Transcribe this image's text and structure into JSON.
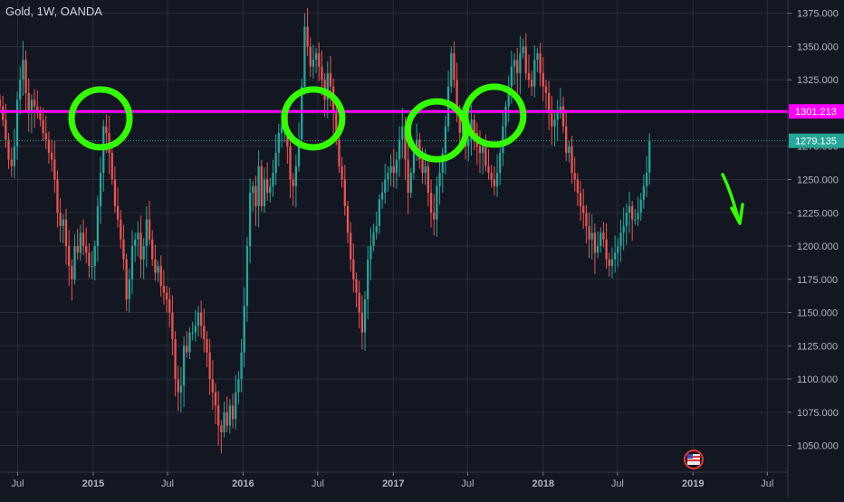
{
  "header": {
    "symbol_title": "Gold, 1W, OANDA"
  },
  "chart_data": {
    "type": "candlestick",
    "title": "Gold, 1W, OANDA",
    "ylim": [
      1030,
      1385
    ],
    "y_ticks": [
      1050,
      1075,
      1100,
      1125,
      1150,
      1175,
      1200,
      1225,
      1250,
      1275,
      1300,
      1325,
      1350,
      1375
    ],
    "y_tick_labels": [
      "1050.000",
      "1075.000",
      "1100.000",
      "1125.000",
      "1150.000",
      "1175.000",
      "1200.000",
      "1225.000",
      "1250.000",
      "1275.000",
      "1300.000",
      "1325.000",
      "1350.000",
      "1375.000"
    ],
    "x_range": [
      "2014-05-19",
      "2019-08-20"
    ],
    "x_ticks": [
      {
        "date": "2014-07-01",
        "label": "Jul",
        "bold": false
      },
      {
        "date": "2015-01-01",
        "label": "2015",
        "bold": true
      },
      {
        "date": "2015-07-01",
        "label": "Jul",
        "bold": false
      },
      {
        "date": "2016-01-01",
        "label": "2016",
        "bold": true
      },
      {
        "date": "2016-07-01",
        "label": "Jul",
        "bold": false
      },
      {
        "date": "2017-01-01",
        "label": "2017",
        "bold": true
      },
      {
        "date": "2017-07-01",
        "label": "Jul",
        "bold": false
      },
      {
        "date": "2018-01-01",
        "label": "2018",
        "bold": true
      },
      {
        "date": "2018-07-01",
        "label": "Jul",
        "bold": false
      },
      {
        "date": "2019-01-01",
        "label": "2019",
        "bold": true
      },
      {
        "date": "2019-07-01",
        "label": "Jul",
        "bold": false
      }
    ],
    "series": [
      {
        "name": "Gold",
        "start": "2014-05-19",
        "interval_days": 7,
        "close": [
          1305,
          1295,
          1280,
          1265,
          1260,
          1275,
          1310,
          1325,
          1340,
          1315,
          1300,
          1310,
          1305,
          1300,
          1295,
          1285,
          1280,
          1270,
          1265,
          1250,
          1225,
          1215,
          1220,
          1200,
          1185,
          1175,
          1200,
          1195,
          1210,
          1200,
          1195,
          1185,
          1185,
          1200,
          1230,
          1255,
          1290,
          1285,
          1270,
          1250,
          1230,
          1220,
          1205,
          1190,
          1160,
          1175,
          1200,
          1205,
          1210,
          1190,
          1200,
          1220,
          1205,
          1190,
          1180,
          1185,
          1170,
          1165,
          1160,
          1150,
          1130,
          1100,
          1090,
          1095,
          1125,
          1120,
          1135,
          1135,
          1140,
          1150,
          1140,
          1130,
          1120,
          1100,
          1090,
          1080,
          1065,
          1060,
          1075,
          1065,
          1080,
          1070,
          1090,
          1100,
          1120,
          1155,
          1200,
          1240,
          1245,
          1230,
          1260,
          1230,
          1250,
          1240,
          1245,
          1255,
          1270,
          1285,
          1290,
          1290,
          1275,
          1250,
          1245,
          1260,
          1280,
          1320,
          1365,
          1350,
          1335,
          1340,
          1345,
          1335,
          1325,
          1310,
          1330,
          1320,
          1300,
          1280,
          1260,
          1250,
          1230,
          1210,
          1190,
          1175,
          1165,
          1150,
          1135,
          1160,
          1190,
          1200,
          1210,
          1215,
          1235,
          1240,
          1250,
          1255,
          1260,
          1255,
          1265,
          1280,
          1290,
          1265,
          1240,
          1255,
          1270,
          1280,
          1265,
          1255,
          1260,
          1240,
          1225,
          1220,
          1245,
          1255,
          1270,
          1290,
          1320,
          1345,
          1325,
          1300,
          1285,
          1295,
          1275,
          1280,
          1295,
          1285,
          1275,
          1270,
          1275,
          1260,
          1255,
          1250,
          1245,
          1255,
          1270,
          1290,
          1305,
          1320,
          1335,
          1340,
          1330,
          1345,
          1350,
          1330,
          1325,
          1320,
          1340,
          1345,
          1330,
          1320,
          1315,
          1300,
          1290,
          1295,
          1300,
          1305,
          1290,
          1270,
          1275,
          1255,
          1250,
          1240,
          1230,
          1225,
          1215,
          1205,
          1210,
          1195,
          1200,
          1210,
          1205,
          1190,
          1185,
          1190,
          1195,
          1200,
          1210,
          1215,
          1225,
          1230,
          1220,
          1220,
          1225,
          1235,
          1245,
          1255,
          1279
        ]
      }
    ],
    "candle_colors": {
      "up": "#26a69a",
      "down": "#ef5350"
    },
    "annotations": {
      "resistance_line": {
        "value": 1301.213,
        "label": "1301.213",
        "color": "#ff00ff"
      },
      "last_price": {
        "value": 1279.135,
        "label": "1279.135",
        "color": "#26a69a"
      },
      "circles": [
        {
          "date": "2015-01-19",
          "value": 1296,
          "color": "#33ff00"
        },
        {
          "date": "2016-06-20",
          "value": 1296,
          "color": "#33ff00"
        },
        {
          "date": "2017-04-17",
          "value": 1287,
          "color": "#33ff00"
        },
        {
          "date": "2017-09-04",
          "value": 1298,
          "color": "#33ff00"
        }
      ],
      "arrow": {
        "direction": "down",
        "color": "#33ff00"
      }
    },
    "grid": true,
    "background": "#131722"
  }
}
